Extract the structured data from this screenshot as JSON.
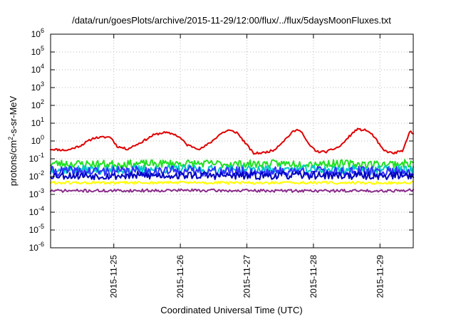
{
  "chart_data": {
    "type": "line",
    "title": "/data/run/goesPlots/archive/2015-11-29/12:00/flux/../flux/5daysMoonFluxes.txt",
    "xlabel": "Coordinated Universal Time (UTC)",
    "ylabel_parts": {
      "base": "protons/cm",
      "exp": "2",
      "rest": "-s-sr-MeV"
    },
    "y_scale": "log",
    "ylim": [
      1e-06,
      1000000.0
    ],
    "y_ticks": [
      {
        "base": "10",
        "exp": "-6",
        "value": 1e-06
      },
      {
        "base": "10",
        "exp": "-5",
        "value": 1e-05
      },
      {
        "base": "10",
        "exp": "-4",
        "value": 0.0001
      },
      {
        "base": "10",
        "exp": "-3",
        "value": 0.001
      },
      {
        "base": "10",
        "exp": "-2",
        "value": 0.01
      },
      {
        "base": "10",
        "exp": "-1",
        "value": 0.1
      },
      {
        "base": "10",
        "exp": "0",
        "value": 1
      },
      {
        "base": "10",
        "exp": "1",
        "value": 10
      },
      {
        "base": "10",
        "exp": "2",
        "value": 100
      },
      {
        "base": "10",
        "exp": "3",
        "value": 1000
      },
      {
        "base": "10",
        "exp": "4",
        "value": 10000
      },
      {
        "base": "10",
        "exp": "5",
        "value": 100000
      },
      {
        "base": "10",
        "exp": "6",
        "value": 1000000
      }
    ],
    "x_unit": "days since 2015-11-24 00:00 UTC",
    "xlim": [
      0.05,
      5.5
    ],
    "x_ticks": [
      {
        "label": "2015-11-25",
        "value": 1
      },
      {
        "label": "2015-11-26",
        "value": 2
      },
      {
        "label": "2015-11-27",
        "value": 3
      },
      {
        "label": "2015-11-28",
        "value": 4
      },
      {
        "label": "2015-11-29",
        "value": 5
      }
    ],
    "grid": true,
    "legend": "none",
    "series": [
      {
        "color": "#e00000",
        "width": 2,
        "noise": 0.06,
        "seed": 11,
        "x": [
          0.05,
          0.3,
          0.5,
          0.7,
          0.95,
          1.05,
          1.2,
          1.4,
          1.6,
          1.75,
          1.9,
          2.0,
          2.1,
          2.3,
          2.45,
          2.6,
          2.72,
          2.85,
          3.0,
          3.1,
          3.25,
          3.4,
          3.55,
          3.7,
          3.8,
          3.92,
          4.05,
          4.2,
          4.4,
          4.55,
          4.65,
          4.8,
          4.9,
          5.05,
          5.2,
          5.35,
          5.45,
          5.5
        ],
        "y": [
          0.35,
          0.3,
          0.55,
          1.5,
          1.7,
          0.5,
          0.35,
          0.8,
          2.2,
          3.0,
          2.5,
          1.5,
          0.6,
          0.35,
          0.8,
          2.5,
          4.0,
          3.0,
          0.6,
          0.2,
          0.22,
          0.3,
          1.0,
          3.5,
          4.5,
          0.7,
          0.25,
          0.25,
          0.5,
          2.0,
          4.5,
          4.0,
          2.0,
          0.3,
          0.2,
          0.3,
          3.5,
          2.5
        ]
      },
      {
        "color": "#22e022",
        "width": 2,
        "noise": 0.22,
        "seed": 23,
        "x": [
          0.05,
          1.0,
          2.0,
          3.0,
          4.0,
          5.0,
          5.5
        ],
        "y": [
          0.055,
          0.05,
          0.055,
          0.05,
          0.055,
          0.05,
          0.055
        ]
      },
      {
        "color": "#00c8c8",
        "width": 2,
        "noise": 0.25,
        "seed": 37,
        "x": [
          0.05,
          1.0,
          2.0,
          3.0,
          4.0,
          5.0,
          5.5
        ],
        "y": [
          0.025,
          0.024,
          0.026,
          0.024,
          0.025,
          0.024,
          0.025
        ]
      },
      {
        "color": "#3030ff",
        "width": 2,
        "noise": 0.28,
        "seed": 41,
        "x": [
          0.05,
          1.0,
          2.0,
          3.0,
          4.0,
          5.0,
          5.5
        ],
        "y": [
          0.02,
          0.019,
          0.021,
          0.018,
          0.02,
          0.019,
          0.02
        ]
      },
      {
        "color": "#0000c0",
        "width": 2,
        "noise": 0.22,
        "seed": 53,
        "x": [
          0.05,
          1.0,
          2.0,
          3.0,
          4.0,
          5.0,
          5.5
        ],
        "y": [
          0.012,
          0.011,
          0.012,
          0.011,
          0.012,
          0.011,
          0.012
        ]
      },
      {
        "color": "#ffff00",
        "width": 2,
        "noise": 0.08,
        "seed": 61,
        "x": [
          0.05,
          1.0,
          2.0,
          3.0,
          4.0,
          5.0,
          5.5
        ],
        "y": [
          0.0045,
          0.0044,
          0.0046,
          0.0044,
          0.0045,
          0.0044,
          0.0045
        ]
      },
      {
        "color": "#8a2d8a",
        "width": 2,
        "noise": 0.08,
        "seed": 71,
        "x": [
          0.05,
          1.0,
          2.0,
          3.0,
          4.0,
          5.0,
          5.5
        ],
        "y": [
          0.0016,
          0.0016,
          0.0017,
          0.0016,
          0.0016,
          0.0016,
          0.0017
        ]
      }
    ]
  }
}
